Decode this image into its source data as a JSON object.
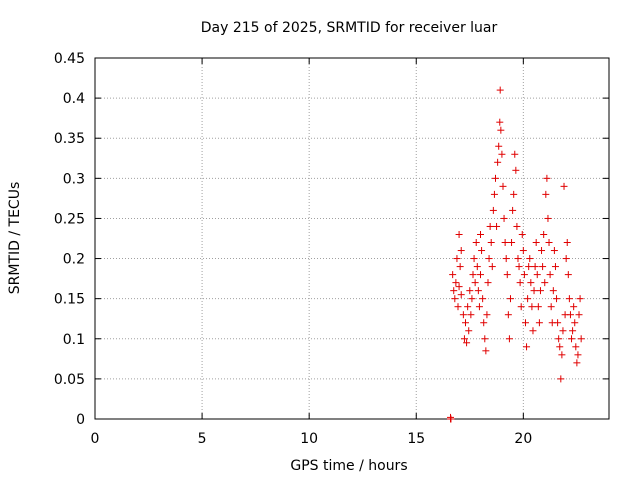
{
  "chart_data": {
    "type": "scatter",
    "title": "Day 215 of 2025, SRMTID for receiver luar",
    "xlabel": "GPS time / hours",
    "ylabel": "SRMTID / TECUs",
    "xlim": [
      0,
      24
    ],
    "ylim": [
      0,
      0.45
    ],
    "xticks": [
      0,
      5,
      10,
      15,
      20
    ],
    "xtick_labels": [
      "0",
      "5",
      "10",
      "15",
      "20"
    ],
    "yticks": [
      0,
      0.05,
      0.1,
      0.15,
      0.2,
      0.25,
      0.3,
      0.35,
      0.4,
      0.45
    ],
    "ytick_labels": [
      "0",
      "0.05",
      "0.1",
      "0.15",
      "0.2",
      "0.25",
      "0.3",
      "0.35",
      "0.4",
      "0.45"
    ],
    "grid": true,
    "marker": "+",
    "color": "#e00000",
    "series": [
      {
        "name": "SRMTID",
        "points": [
          [
            16.6,
            0.0
          ],
          [
            16.6,
            0.002
          ],
          [
            16.62,
            0.0
          ],
          [
            16.7,
            0.18
          ],
          [
            16.75,
            0.16
          ],
          [
            16.8,
            0.15
          ],
          [
            16.85,
            0.17
          ],
          [
            16.9,
            0.2
          ],
          [
            16.95,
            0.14
          ],
          [
            17.0,
            0.23
          ],
          [
            17.0,
            0.165
          ],
          [
            17.05,
            0.19
          ],
          [
            17.1,
            0.21
          ],
          [
            17.1,
            0.155
          ],
          [
            17.2,
            0.13
          ],
          [
            17.25,
            0.1
          ],
          [
            17.3,
            0.12
          ],
          [
            17.35,
            0.095
          ],
          [
            17.4,
            0.14
          ],
          [
            17.45,
            0.11
          ],
          [
            17.5,
            0.16
          ],
          [
            17.55,
            0.13
          ],
          [
            17.6,
            0.15
          ],
          [
            17.65,
            0.18
          ],
          [
            17.7,
            0.2
          ],
          [
            17.75,
            0.17
          ],
          [
            17.8,
            0.22
          ],
          [
            17.85,
            0.19
          ],
          [
            17.9,
            0.16
          ],
          [
            17.95,
            0.14
          ],
          [
            18.0,
            0.23
          ],
          [
            18.0,
            0.18
          ],
          [
            18.05,
            0.21
          ],
          [
            18.1,
            0.15
          ],
          [
            18.15,
            0.12
          ],
          [
            18.2,
            0.1
          ],
          [
            18.25,
            0.085
          ],
          [
            18.3,
            0.13
          ],
          [
            18.35,
            0.17
          ],
          [
            18.4,
            0.2
          ],
          [
            18.45,
            0.24
          ],
          [
            18.5,
            0.22
          ],
          [
            18.55,
            0.19
          ],
          [
            18.6,
            0.26
          ],
          [
            18.65,
            0.28
          ],
          [
            18.7,
            0.3
          ],
          [
            18.75,
            0.24
          ],
          [
            18.8,
            0.32
          ],
          [
            18.85,
            0.34
          ],
          [
            18.9,
            0.37
          ],
          [
            18.92,
            0.41
          ],
          [
            18.95,
            0.36
          ],
          [
            19.0,
            0.33
          ],
          [
            19.05,
            0.29
          ],
          [
            19.1,
            0.25
          ],
          [
            19.15,
            0.22
          ],
          [
            19.2,
            0.2
          ],
          [
            19.25,
            0.18
          ],
          [
            19.3,
            0.13
          ],
          [
            19.35,
            0.1
          ],
          [
            19.4,
            0.15
          ],
          [
            19.45,
            0.22
          ],
          [
            19.5,
            0.26
          ],
          [
            19.55,
            0.28
          ],
          [
            19.6,
            0.33
          ],
          [
            19.65,
            0.31
          ],
          [
            19.7,
            0.24
          ],
          [
            19.75,
            0.2
          ],
          [
            19.8,
            0.19
          ],
          [
            19.85,
            0.17
          ],
          [
            19.9,
            0.14
          ],
          [
            19.95,
            0.23
          ],
          [
            20.0,
            0.21
          ],
          [
            20.05,
            0.18
          ],
          [
            20.1,
            0.12
          ],
          [
            20.15,
            0.09
          ],
          [
            20.2,
            0.15
          ],
          [
            20.25,
            0.19
          ],
          [
            20.3,
            0.2
          ],
          [
            20.35,
            0.17
          ],
          [
            20.4,
            0.14
          ],
          [
            20.45,
            0.11
          ],
          [
            20.5,
            0.16
          ],
          [
            20.55,
            0.19
          ],
          [
            20.6,
            0.22
          ],
          [
            20.65,
            0.18
          ],
          [
            20.7,
            0.14
          ],
          [
            20.75,
            0.12
          ],
          [
            20.8,
            0.16
          ],
          [
            20.85,
            0.21
          ],
          [
            20.9,
            0.19
          ],
          [
            20.95,
            0.23
          ],
          [
            21.0,
            0.17
          ],
          [
            21.05,
            0.28
          ],
          [
            21.1,
            0.3
          ],
          [
            21.15,
            0.25
          ],
          [
            21.2,
            0.22
          ],
          [
            21.25,
            0.18
          ],
          [
            21.3,
            0.14
          ],
          [
            21.35,
            0.12
          ],
          [
            21.4,
            0.16
          ],
          [
            21.45,
            0.21
          ],
          [
            21.5,
            0.19
          ],
          [
            21.55,
            0.15
          ],
          [
            21.6,
            0.12
          ],
          [
            21.65,
            0.1
          ],
          [
            21.7,
            0.09
          ],
          [
            21.75,
            0.05
          ],
          [
            21.8,
            0.08
          ],
          [
            21.85,
            0.11
          ],
          [
            21.9,
            0.29
          ],
          [
            21.95,
            0.13
          ],
          [
            22.0,
            0.2
          ],
          [
            22.05,
            0.22
          ],
          [
            22.1,
            0.18
          ],
          [
            22.15,
            0.15
          ],
          [
            22.2,
            0.13
          ],
          [
            22.25,
            0.1
          ],
          [
            22.3,
            0.11
          ],
          [
            22.35,
            0.14
          ],
          [
            22.4,
            0.12
          ],
          [
            22.45,
            0.09
          ],
          [
            22.5,
            0.07
          ],
          [
            22.55,
            0.08
          ],
          [
            22.6,
            0.13
          ],
          [
            22.65,
            0.15
          ],
          [
            22.7,
            0.1
          ]
        ]
      }
    ]
  }
}
